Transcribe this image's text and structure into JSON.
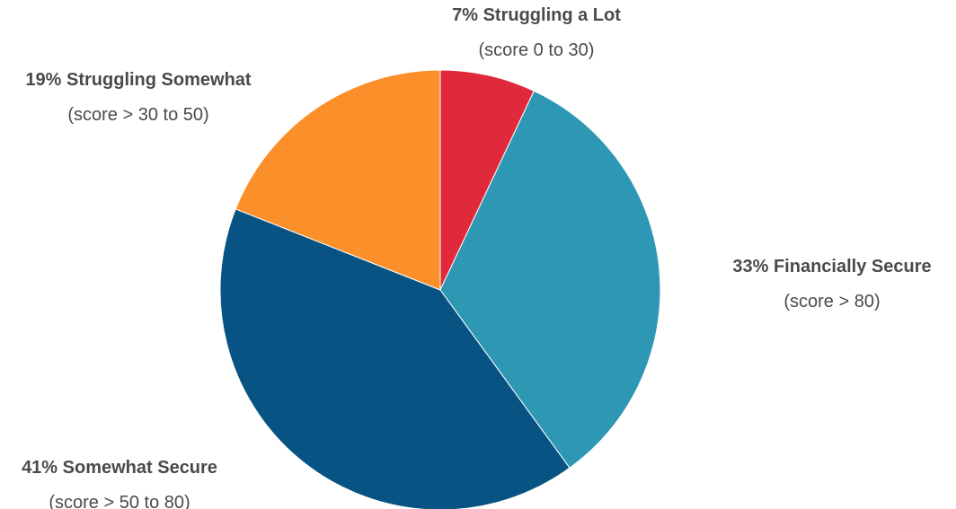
{
  "chart_data": {
    "type": "pie",
    "title": "",
    "slices": [
      {
        "name": "Struggling a Lot",
        "value": 7,
        "label": "7% Struggling a Lot",
        "sublabel": "(score 0 to 30)",
        "color": "#e0293b"
      },
      {
        "name": "Financially Secure",
        "value": 33,
        "label": "33% Financially Secure",
        "sublabel": "(score > 80)",
        "color": "#2e97b3"
      },
      {
        "name": "Somewhat Secure",
        "value": 41,
        "label": "41% Somewhat Secure",
        "sublabel": "(score > 50 to 80)",
        "color": "#065384"
      },
      {
        "name": "Struggling Somewhat",
        "value": 19,
        "label": "19% Struggling Somewhat",
        "sublabel": "(score > 30 to 50)",
        "color": "#fb902b"
      }
    ],
    "start_angle": "12 o'clock",
    "direction": "clockwise",
    "legend": "none"
  }
}
